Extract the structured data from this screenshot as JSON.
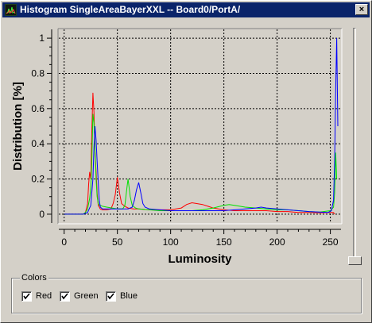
{
  "window": {
    "title": "Histogram SingleAreaBayerXXL -- Board0/PortA/",
    "close_label": "×"
  },
  "colors": {
    "titlebar": "#0a246a",
    "face": "#d4d0c8",
    "red": "#ff0000",
    "green": "#00e000",
    "blue": "#0000ff"
  },
  "chart_data": {
    "type": "line",
    "xlabel": "Luminosity",
    "ylabel": "Distribution [%]",
    "xlim": [
      -5,
      260
    ],
    "ylim": [
      -0.05,
      1.05
    ],
    "x_ticks": [
      0,
      50,
      100,
      150,
      200,
      250
    ],
    "y_ticks": [
      0,
      0.2,
      0.4,
      0.6,
      0.8,
      1
    ],
    "y_tick_labels": [
      "0",
      "0.2",
      "0.4",
      "0.6",
      "0.8",
      "1"
    ],
    "grid": true,
    "series": [
      {
        "name": "Red",
        "color": "#ff0000",
        "x": [
          0,
          18,
          20,
          22,
          23,
          24,
          25,
          26,
          27,
          28,
          29,
          30,
          31,
          32,
          33,
          34,
          36,
          40,
          44,
          46,
          48,
          50,
          52,
          54,
          57,
          60,
          65,
          70,
          80,
          90,
          100,
          110,
          115,
          120,
          125,
          130,
          135,
          140,
          150,
          160,
          170,
          180,
          190,
          200,
          210,
          220,
          230,
          240,
          250,
          253,
          254
        ],
        "y": [
          0,
          0,
          0.01,
          0.06,
          0.17,
          0.24,
          0.2,
          0.47,
          0.69,
          0.58,
          0.36,
          0.24,
          0.12,
          0.05,
          0.04,
          0.03,
          0.025,
          0.025,
          0.03,
          0.06,
          0.11,
          0.21,
          0.12,
          0.06,
          0.045,
          0.035,
          0.03,
          0.03,
          0.025,
          0.025,
          0.025,
          0.035,
          0.055,
          0.065,
          0.06,
          0.055,
          0.045,
          0.035,
          0.025,
          0.02,
          0.02,
          0.02,
          0.02,
          0.015,
          0.015,
          0.01,
          0.01,
          0.008,
          0.01,
          0.01,
          0
        ]
      },
      {
        "name": "Green",
        "color": "#00e000",
        "x": [
          0,
          18,
          20,
          22,
          24,
          25,
          26,
          27,
          28,
          29,
          30,
          31,
          32,
          33,
          34,
          36,
          40,
          45,
          50,
          55,
          57,
          59,
          60,
          62,
          64,
          67,
          70,
          80,
          90,
          100,
          110,
          120,
          130,
          140,
          150,
          155,
          160,
          170,
          180,
          190,
          200,
          210,
          220,
          230,
          240,
          250,
          253,
          254,
          255,
          256
        ],
        "y": [
          0,
          0,
          0.01,
          0.03,
          0.09,
          0.15,
          0.3,
          0.57,
          0.52,
          0.36,
          0.2,
          0.1,
          0.06,
          0.05,
          0.05,
          0.045,
          0.04,
          0.035,
          0.03,
          0.03,
          0.05,
          0.15,
          0.2,
          0.1,
          0.05,
          0.035,
          0.03,
          0.025,
          0.02,
          0.02,
          0.02,
          0.02,
          0.025,
          0.035,
          0.05,
          0.055,
          0.05,
          0.04,
          0.035,
          0.03,
          0.025,
          0.025,
          0.02,
          0.015,
          0.012,
          0.02,
          0.04,
          0.12,
          0.35,
          0.2
        ]
      },
      {
        "name": "Blue",
        "color": "#0000ff",
        "x": [
          0,
          18,
          22,
          25,
          27,
          28,
          29,
          30,
          31,
          32,
          33,
          34,
          36,
          40,
          45,
          50,
          55,
          60,
          64,
          66,
          68,
          70,
          72,
          74,
          76,
          80,
          90,
          100,
          110,
          120,
          130,
          140,
          150,
          160,
          170,
          180,
          185,
          190,
          200,
          210,
          220,
          230,
          240,
          248,
          251,
          253,
          254,
          255,
          256,
          257
        ],
        "y": [
          0,
          0,
          0.01,
          0.05,
          0.2,
          0.38,
          0.5,
          0.42,
          0.3,
          0.18,
          0.08,
          0.04,
          0.03,
          0.03,
          0.03,
          0.03,
          0.03,
          0.03,
          0.04,
          0.08,
          0.14,
          0.18,
          0.12,
          0.06,
          0.04,
          0.03,
          0.025,
          0.02,
          0.02,
          0.02,
          0.02,
          0.02,
          0.02,
          0.025,
          0.03,
          0.035,
          0.04,
          0.035,
          0.03,
          0.025,
          0.02,
          0.015,
          0.012,
          0.01,
          0.02,
          0.08,
          0.3,
          0.7,
          1.0,
          0.5
        ]
      }
    ]
  },
  "colors_group": {
    "label": "Colors",
    "checkboxes": [
      {
        "label": "Red",
        "checked": true
      },
      {
        "label": "Green",
        "checked": true
      },
      {
        "label": "Blue",
        "checked": true
      }
    ]
  }
}
